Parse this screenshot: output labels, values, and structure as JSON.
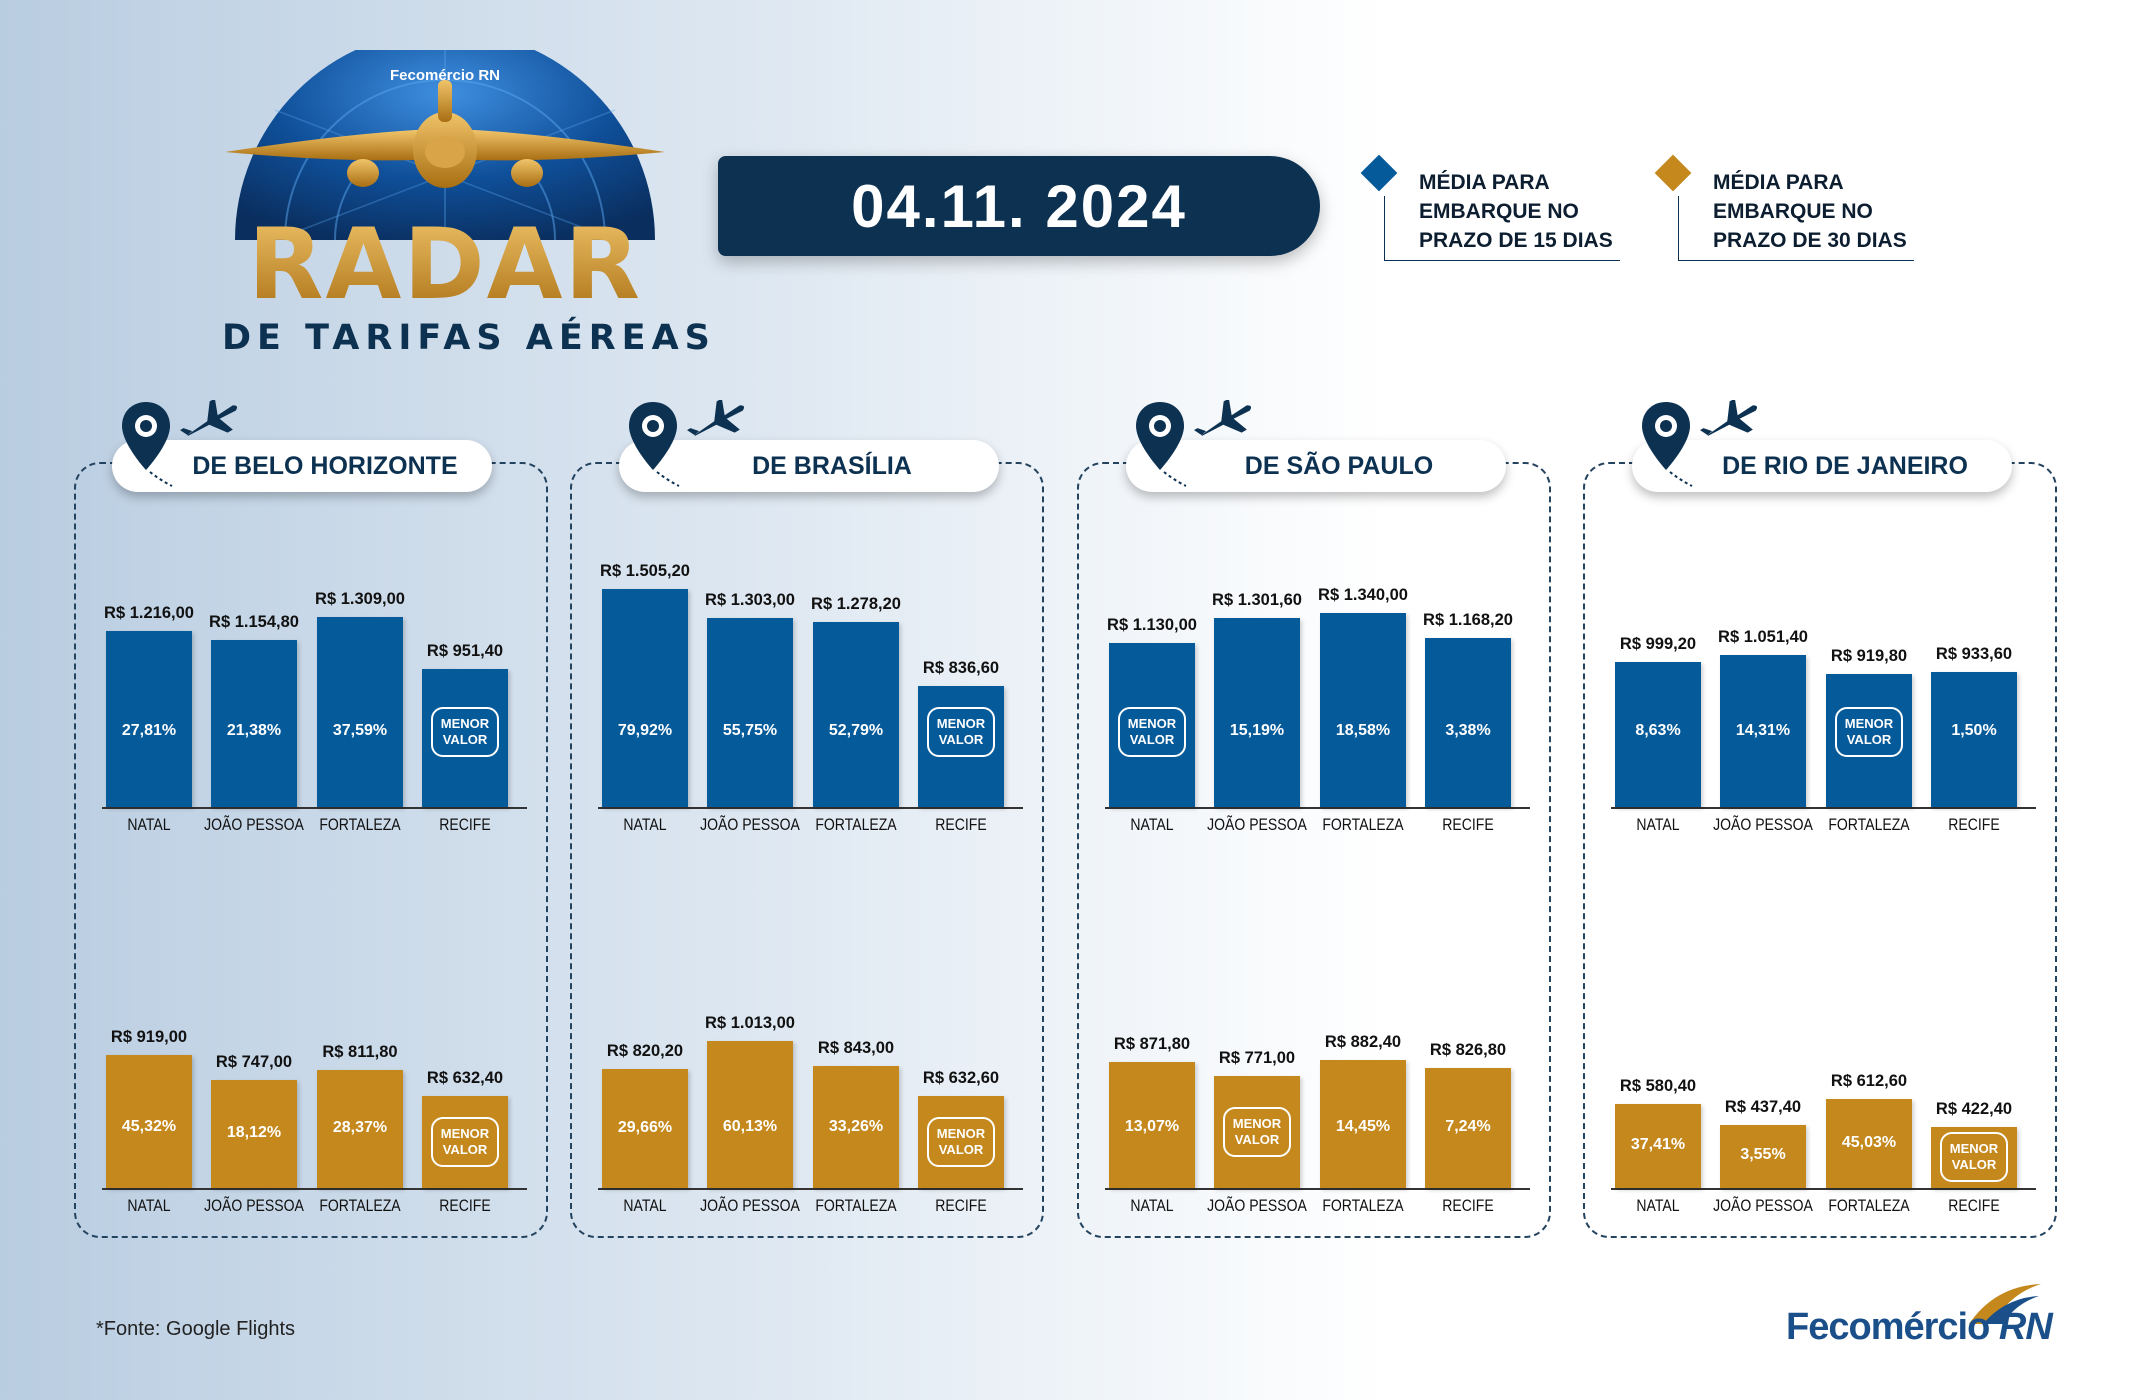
{
  "header": {
    "brand_small": "Fecomércio RN",
    "logo_word": "RADAR",
    "logo_subtitle": "DE TARIFAS AÉREAS",
    "date": "04.11. 2024"
  },
  "legend": [
    {
      "lines": [
        "MÉDIA PARA",
        "EMBARQUE NO",
        "PRAZO DE 15 DIAS"
      ],
      "color": "#055a9a",
      "icon": "diamond-icon"
    },
    {
      "lines": [
        "MÉDIA PARA",
        "EMBARQUE NO",
        "PRAZO DE 30 DIAS"
      ],
      "color": "#c4881c",
      "icon": "diamond-icon"
    }
  ],
  "colors": {
    "blue": "#055a9a",
    "gold": "#c4881c",
    "navy": "#0c3151"
  },
  "icons": {
    "pin": "map-pin-icon",
    "plane": "airplane-icon"
  },
  "footer": {
    "source": "*Fonte: Google Flights",
    "brand": "Fecomércio",
    "brand_suffix": "RN"
  },
  "chart_data": [
    {
      "type": "bar",
      "title": "DE BELO HORIZONTE",
      "categories": [
        "NATAL",
        "JOÃO PESSOA",
        "FORTALEZA",
        "RECIFE"
      ],
      "series": [
        {
          "name": "MÉDIA PARA EMBARQUE NO PRAZO DE 15 DIAS",
          "values": [
            1216.0,
            1154.8,
            1309.0,
            951.4
          ],
          "value_labels": [
            "R$ 1.216,00",
            "R$ 1.154,80",
            "R$ 1.309,00",
            "R$ 951,40"
          ],
          "percent_labels": [
            "27,81%",
            "21,38%",
            "37,59%",
            "MENOR VALOR"
          ]
        },
        {
          "name": "MÉDIA PARA EMBARQUE NO PRAZO DE 30 DIAS",
          "values": [
            919.0,
            747.0,
            811.8,
            632.4
          ],
          "value_labels": [
            "R$ 919,00",
            "R$ 747,00",
            "R$ 811,80",
            "R$ 632,40"
          ],
          "percent_labels": [
            "45,32%",
            "18,12%",
            "28,37%",
            "MENOR VALOR"
          ]
        }
      ]
    },
    {
      "type": "bar",
      "title": "DE BRASÍLIA",
      "categories": [
        "NATAL",
        "JOÃO PESSOA",
        "FORTALEZA",
        "RECIFE"
      ],
      "series": [
        {
          "name": "MÉDIA PARA EMBARQUE NO PRAZO DE 15 DIAS",
          "values": [
            1505.2,
            1303.0,
            1278.2,
            836.6
          ],
          "value_labels": [
            "R$ 1.505,20",
            "R$ 1.303,00",
            "R$ 1.278,20",
            "R$ 836,60"
          ],
          "percent_labels": [
            "79,92%",
            "55,75%",
            "52,79%",
            "MENOR VALOR"
          ]
        },
        {
          "name": "MÉDIA PARA EMBARQUE NO PRAZO DE 30 DIAS",
          "values": [
            820.2,
            1013.0,
            843.0,
            632.6
          ],
          "value_labels": [
            "R$ 820,20",
            "R$ 1.013,00",
            "R$ 843,00",
            "R$ 632,60"
          ],
          "percent_labels": [
            "29,66%",
            "60,13%",
            "33,26%",
            "MENOR VALOR"
          ]
        }
      ]
    },
    {
      "type": "bar",
      "title": "DE SÃO PAULO",
      "categories": [
        "NATAL",
        "JOÃO PESSOA",
        "FORTALEZA",
        "RECIFE"
      ],
      "series": [
        {
          "name": "MÉDIA PARA EMBARQUE NO PRAZO DE 15 DIAS",
          "values": [
            1130.0,
            1301.6,
            1340.0,
            1168.2
          ],
          "value_labels": [
            "R$ 1.130,00",
            "R$ 1.301,60",
            "R$ 1.340,00",
            "R$ 1.168,20"
          ],
          "percent_labels": [
            "MENOR VALOR",
            "15,19%",
            "18,58%",
            "3,38%"
          ]
        },
        {
          "name": "MÉDIA PARA EMBARQUE NO PRAZO DE 30 DIAS",
          "values": [
            871.8,
            771.0,
            882.4,
            826.8
          ],
          "value_labels": [
            "R$ 871,80",
            "R$ 771,00",
            "R$ 882,40",
            "R$ 826,80"
          ],
          "percent_labels": [
            "13,07%",
            "MENOR VALOR",
            "14,45%",
            "7,24%"
          ]
        }
      ]
    },
    {
      "type": "bar",
      "title": "DE RIO DE JANEIRO",
      "categories": [
        "NATAL",
        "JOÃO PESSOA",
        "FORTALEZA",
        "RECIFE"
      ],
      "series": [
        {
          "name": "MÉDIA PARA EMBARQUE NO PRAZO DE 15 DIAS",
          "values": [
            999.2,
            1051.4,
            919.8,
            933.6
          ],
          "value_labels": [
            "R$ 999,20",
            "R$ 1.051,40",
            "R$ 919,80",
            "R$ 933,60"
          ],
          "percent_labels": [
            "8,63%",
            "14,31%",
            "MENOR VALOR",
            "1,50%"
          ]
        },
        {
          "name": "MÉDIA PARA EMBARQUE NO PRAZO DE 30 DIAS",
          "values": [
            580.4,
            437.4,
            612.6,
            422.4
          ],
          "value_labels": [
            "R$ 580,40",
            "R$ 437,40",
            "R$ 612,60",
            "R$ 422,40"
          ],
          "percent_labels": [
            "37,41%",
            "3,55%",
            "45,03%",
            "MENOR VALOR"
          ]
        }
      ]
    }
  ]
}
